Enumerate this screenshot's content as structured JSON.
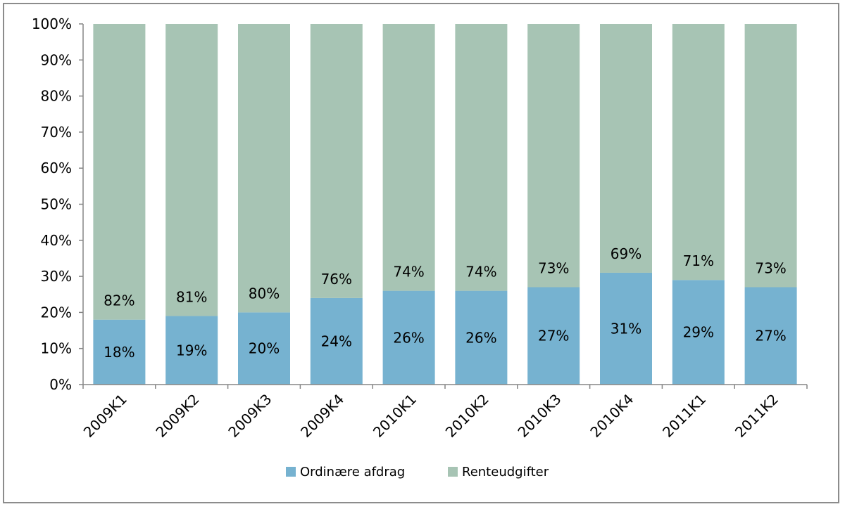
{
  "chart_data": {
    "type": "bar",
    "stacked": true,
    "percent_stacked": true,
    "categories": [
      "2009K1",
      "2009K2",
      "2009K3",
      "2009K4",
      "2010K1",
      "2010K2",
      "2010K3",
      "2010K4",
      "2011K1",
      "2011K2"
    ],
    "series": [
      {
        "name": "Ordinære afdrag",
        "color": "#76b2d0",
        "values": [
          18,
          19,
          20,
          24,
          26,
          26,
          27,
          31,
          29,
          27
        ]
      },
      {
        "name": "Renteudgifter",
        "color": "#a7c4b4",
        "values": [
          82,
          81,
          80,
          76,
          74,
          74,
          73,
          69,
          71,
          73
        ]
      }
    ],
    "y_ticks": [
      "0%",
      "10%",
      "20%",
      "30%",
      "40%",
      "50%",
      "60%",
      "70%",
      "80%",
      "90%",
      "100%"
    ],
    "ylim": [
      0,
      100
    ],
    "data_label_suffix": "%",
    "legend_position": "bottom",
    "grid": false,
    "title": "",
    "xlabel": "",
    "ylabel": ""
  }
}
